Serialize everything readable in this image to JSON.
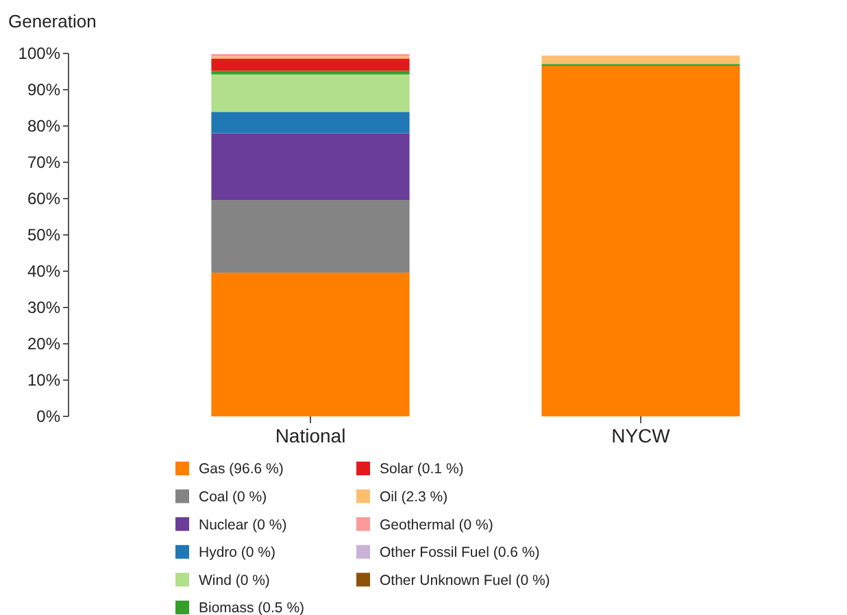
{
  "chart_data": {
    "type": "bar",
    "stacked": true,
    "ylabel": "Generation",
    "categories": [
      "National",
      "NYCW"
    ],
    "ylim": [
      0,
      100
    ],
    "yticks": [
      {
        "value": 0,
        "label": "0%"
      },
      {
        "value": 10,
        "label": "10%"
      },
      {
        "value": 20,
        "label": "20%"
      },
      {
        "value": 30,
        "label": "30%"
      },
      {
        "value": 40,
        "label": "40%"
      },
      {
        "value": 50,
        "label": "50%"
      },
      {
        "value": 60,
        "label": "60%"
      },
      {
        "value": 70,
        "label": "70%"
      },
      {
        "value": 80,
        "label": "80%"
      },
      {
        "value": 90,
        "label": "90%"
      },
      {
        "value": 100,
        "label": "100%"
      }
    ],
    "legend": "bottom",
    "grid": false,
    "series": [
      {
        "name": "Gas (96.6 %)",
        "color": "#ff7f00",
        "values": [
          39.6,
          96.6
        ]
      },
      {
        "name": "Coal (0 %)",
        "color": "#848484",
        "values": [
          20,
          0
        ]
      },
      {
        "name": "Nuclear (0 %)",
        "color": "#6a3d9a",
        "values": [
          18.4,
          0
        ]
      },
      {
        "name": "Hydro (0 %)",
        "color": "#1f78b4",
        "values": [
          5.9,
          0
        ]
      },
      {
        "name": "Wind (0 %)",
        "color": "#b2df8a",
        "values": [
          10.3,
          0
        ]
      },
      {
        "name": "Biomass (0.5 %)",
        "color": "#33a02c",
        "values": [
          1,
          0.5
        ]
      },
      {
        "name": "Solar (0.1 %)",
        "color": "#e31a1c",
        "values": [
          3.4,
          null
        ]
      },
      {
        "name": "Oil (2.3 %)",
        "color": "#fdbf6f",
        "values": [
          0.6,
          2.3
        ]
      },
      {
        "name": "Geothermal (0 %)",
        "color": "#fb9a99",
        "values": [
          0.6,
          0
        ]
      },
      {
        "name": "Other Fossil Fuel (0.6 %)",
        "color": "#cab2d6",
        "values": [
          0,
          null
        ]
      },
      {
        "name": "Other Unknown Fuel (0 %)",
        "color": "#8c510a",
        "values": [
          0,
          0
        ]
      }
    ]
  }
}
